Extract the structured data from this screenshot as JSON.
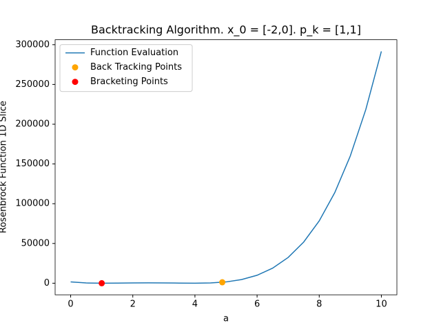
{
  "chart_data": {
    "type": "line",
    "title": "Backtracking Algorithm. x_0 = [-2,0]. p_k = [1,1]",
    "xlabel": "a",
    "ylabel": "Rosenbrock Function 1D Slice",
    "x": [
      0,
      0.5,
      1,
      1.5,
      2,
      2.5,
      3,
      3.5,
      4,
      4.5,
      5,
      5.5,
      6,
      6.5,
      7,
      7.5,
      8,
      8.5,
      9,
      9.5,
      10
    ],
    "series": [
      {
        "name": "Function Evaluation",
        "color": "#1f77b4",
        "kind": "line",
        "values": [
          1609,
          312.5,
          4,
          158.5,
          401,
          506.5,
          400,
          156.5,
          1,
          308.5,
          1604,
          4562.5,
          10009,
          18918.5,
          32416,
          51776.5,
          78425,
          113936.5,
          160036,
          218598.5,
          291649
        ]
      },
      {
        "name": "Back Tracking Points",
        "color": "#ffa500",
        "kind": "scatter",
        "x": [
          4.88
        ],
        "values": [
          1169
        ]
      },
      {
        "name": "Bracketing Points",
        "color": "#ff0000",
        "kind": "scatter",
        "x": [
          1
        ],
        "values": [
          4
        ]
      }
    ],
    "xlim": [
      -0.5,
      10.5
    ],
    "xticks": [
      0,
      2,
      4,
      6,
      8,
      10
    ],
    "ylim": [
      -14578,
      306231
    ],
    "yticks": [
      0,
      50000,
      100000,
      150000,
      200000,
      250000,
      300000
    ],
    "legend": "upper left",
    "grid": false
  }
}
